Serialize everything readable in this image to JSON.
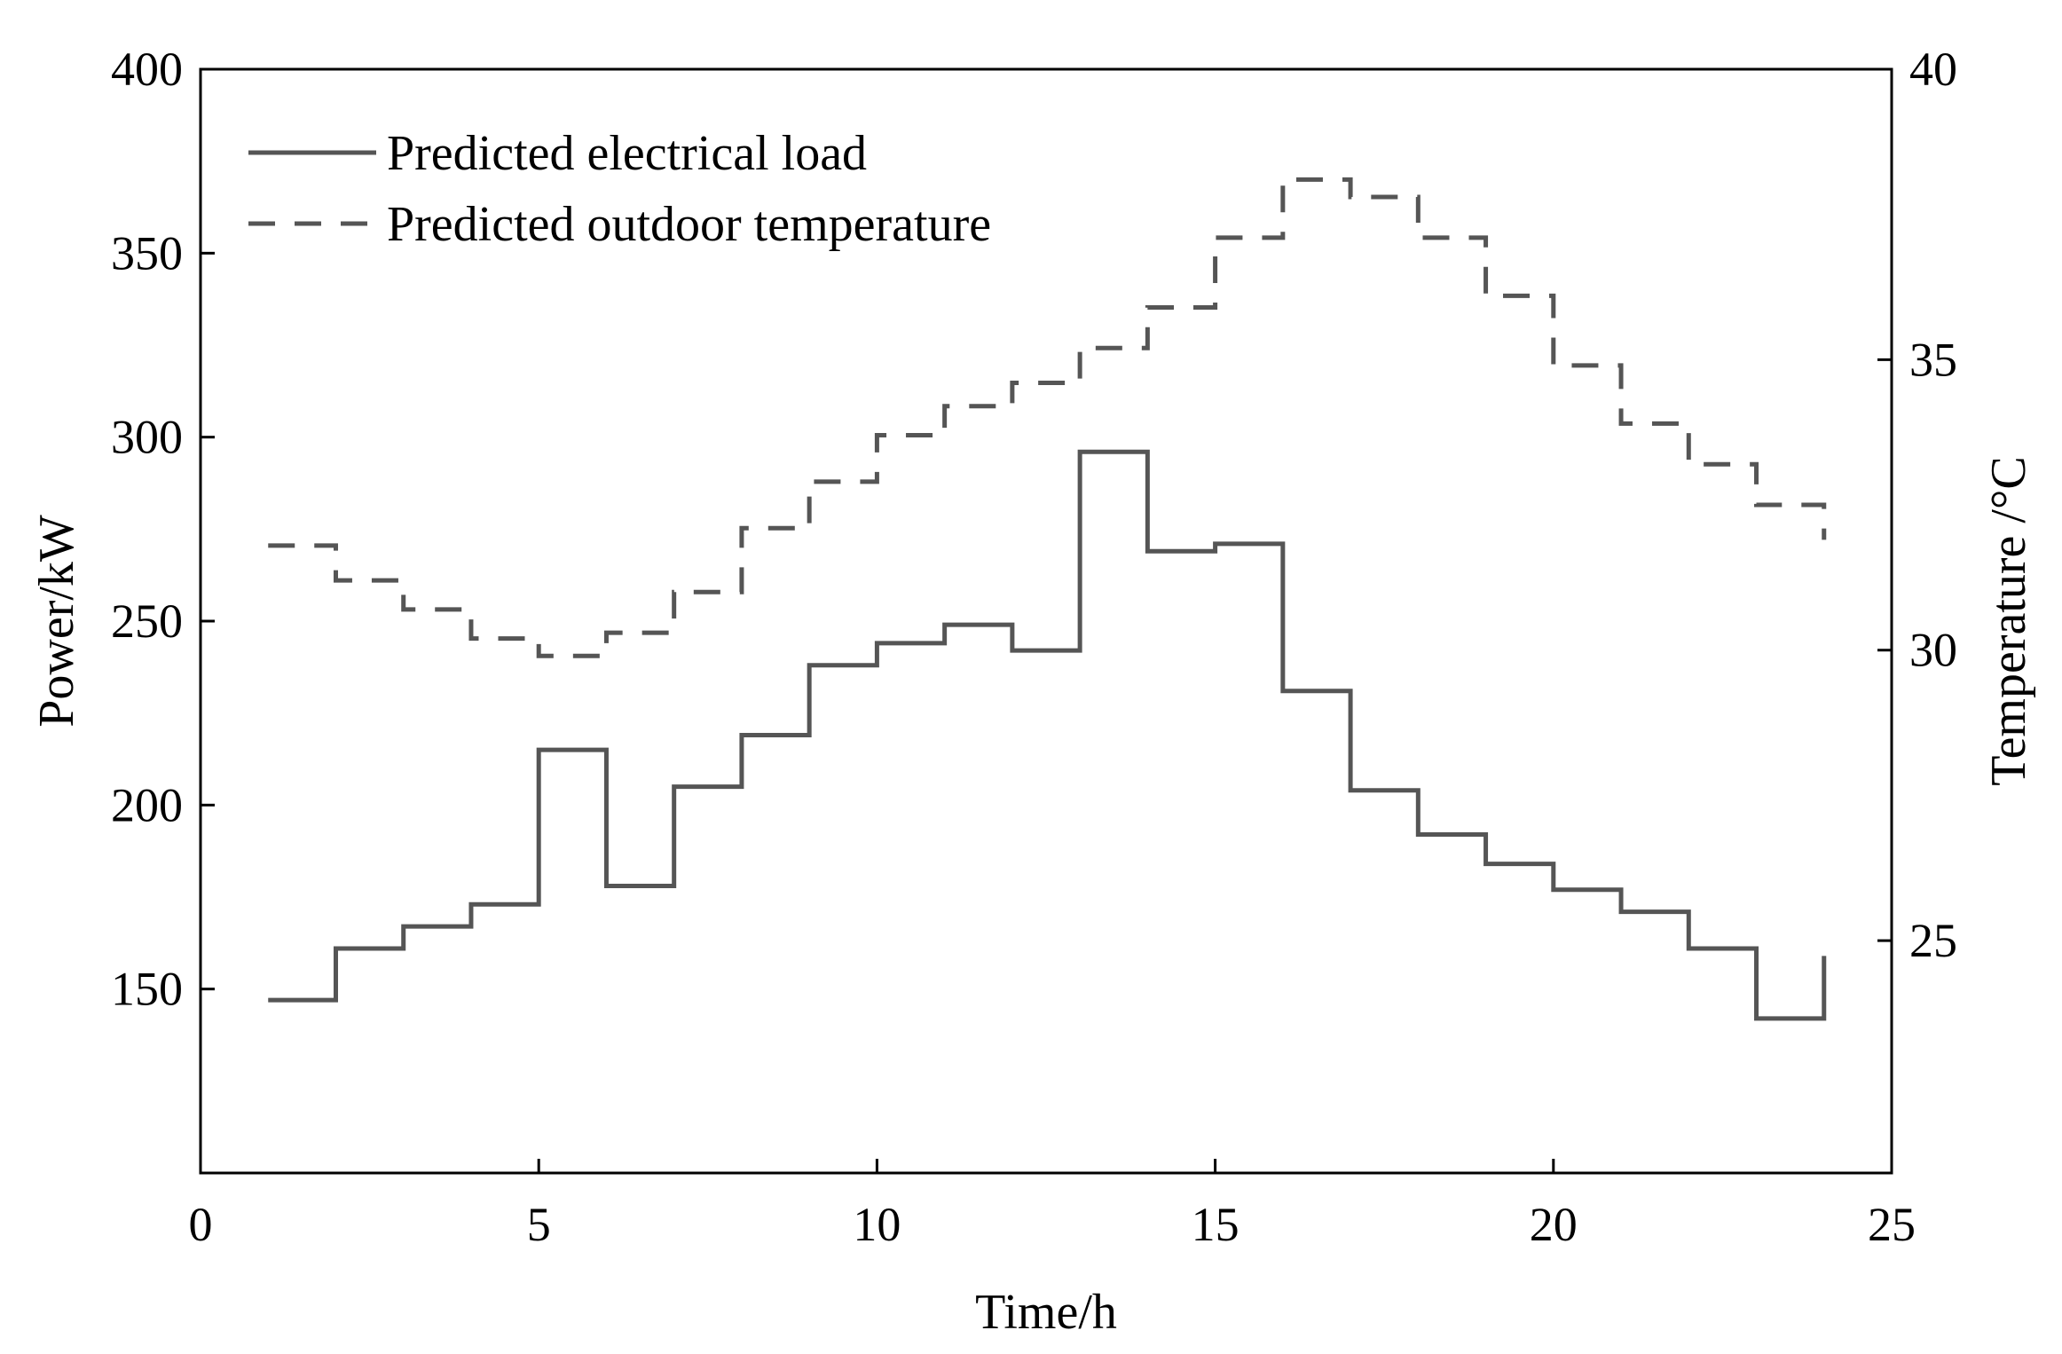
{
  "chart_data": {
    "type": "line",
    "step": "post",
    "xlabel": "Time/h",
    "ylabel": "Power/kW",
    "y2label": "Temperature /°C",
    "xlim": [
      0,
      25
    ],
    "ylim": [
      100,
      400
    ],
    "y2lim": [
      21,
      40
    ],
    "x_ticks": [
      0,
      5,
      10,
      15,
      20,
      25
    ],
    "y_ticks": [
      150,
      200,
      250,
      300,
      350,
      400
    ],
    "y2_ticks": [
      25,
      30,
      35,
      40
    ],
    "grid": false,
    "legend_position": "top-left",
    "series": [
      {
        "name": "Predicted electrical load",
        "axis": "left",
        "style": "solid",
        "color": "#555555",
        "x": [
          1,
          2,
          3,
          4,
          5,
          6,
          7,
          8,
          9,
          10,
          11,
          12,
          13,
          14,
          15,
          16,
          17,
          18,
          19,
          20,
          21,
          22,
          23,
          24
        ],
        "values": [
          147,
          161,
          167,
          173,
          215,
          178,
          205,
          219,
          238,
          244,
          249,
          242,
          296,
          269,
          271,
          231,
          204,
          192,
          184,
          177,
          171,
          161,
          142,
          159
        ]
      },
      {
        "name": "Predicted outdoor temperature",
        "axis": "right",
        "style": "dashed",
        "color": "#555555",
        "x": [
          1,
          2,
          3,
          4,
          5,
          6,
          7,
          8,
          9,
          10,
          11,
          12,
          13,
          14,
          15,
          16,
          17,
          18,
          19,
          20,
          21,
          22,
          23,
          24
        ],
        "values": [
          31.8,
          31.2,
          30.7,
          30.2,
          29.9,
          30.3,
          31.0,
          32.1,
          32.9,
          33.7,
          34.2,
          34.6,
          35.2,
          35.9,
          37.1,
          38.1,
          37.8,
          37.1,
          36.1,
          34.9,
          33.9,
          33.2,
          32.5,
          31.9
        ]
      }
    ]
  }
}
